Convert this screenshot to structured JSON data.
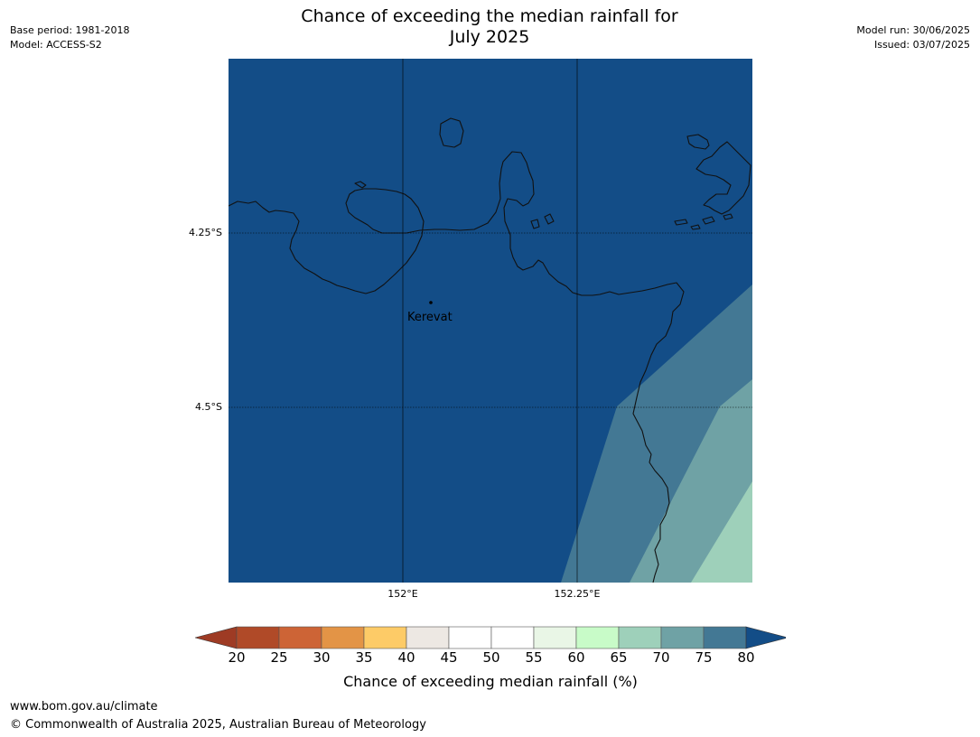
{
  "header": {
    "title_line1": "Chance of exceeding the median rainfall for",
    "title_line2": "July 2025",
    "base_period": "Base period: 1981-2018",
    "model": "Model: ACCESS-S2",
    "model_run": "Model run: 30/06/2025",
    "issued": "Issued: 03/07/2025"
  },
  "map": {
    "lat_labels": [
      "4.25°S",
      "4.5°S"
    ],
    "lon_labels": [
      "152°E",
      "152.25°E"
    ],
    "place_label": "Kerevat",
    "background_color": "#134d87"
  },
  "legend": {
    "ticks": [
      "20",
      "25",
      "30",
      "35",
      "40",
      "45",
      "50",
      "55",
      "60",
      "65",
      "70",
      "75",
      "80"
    ],
    "colors": [
      "#b04a28",
      "#cd6436",
      "#e39446",
      "#fdcb67",
      "#ede8e3",
      "#ffffff",
      "#ffffff",
      "#e9f6e6",
      "#c8fbc8",
      "#9ed0ba",
      "#6fa2a5",
      "#437894"
    ],
    "under_color": "#9e3b24",
    "over_color": "#134d87",
    "label": "Chance of exceeding median rainfall (%)"
  },
  "footer": {
    "url": "www.bom.gov.au/climate",
    "copyright": "© Commonwealth of Australia 2025, Australian Bureau of Meteorology"
  }
}
